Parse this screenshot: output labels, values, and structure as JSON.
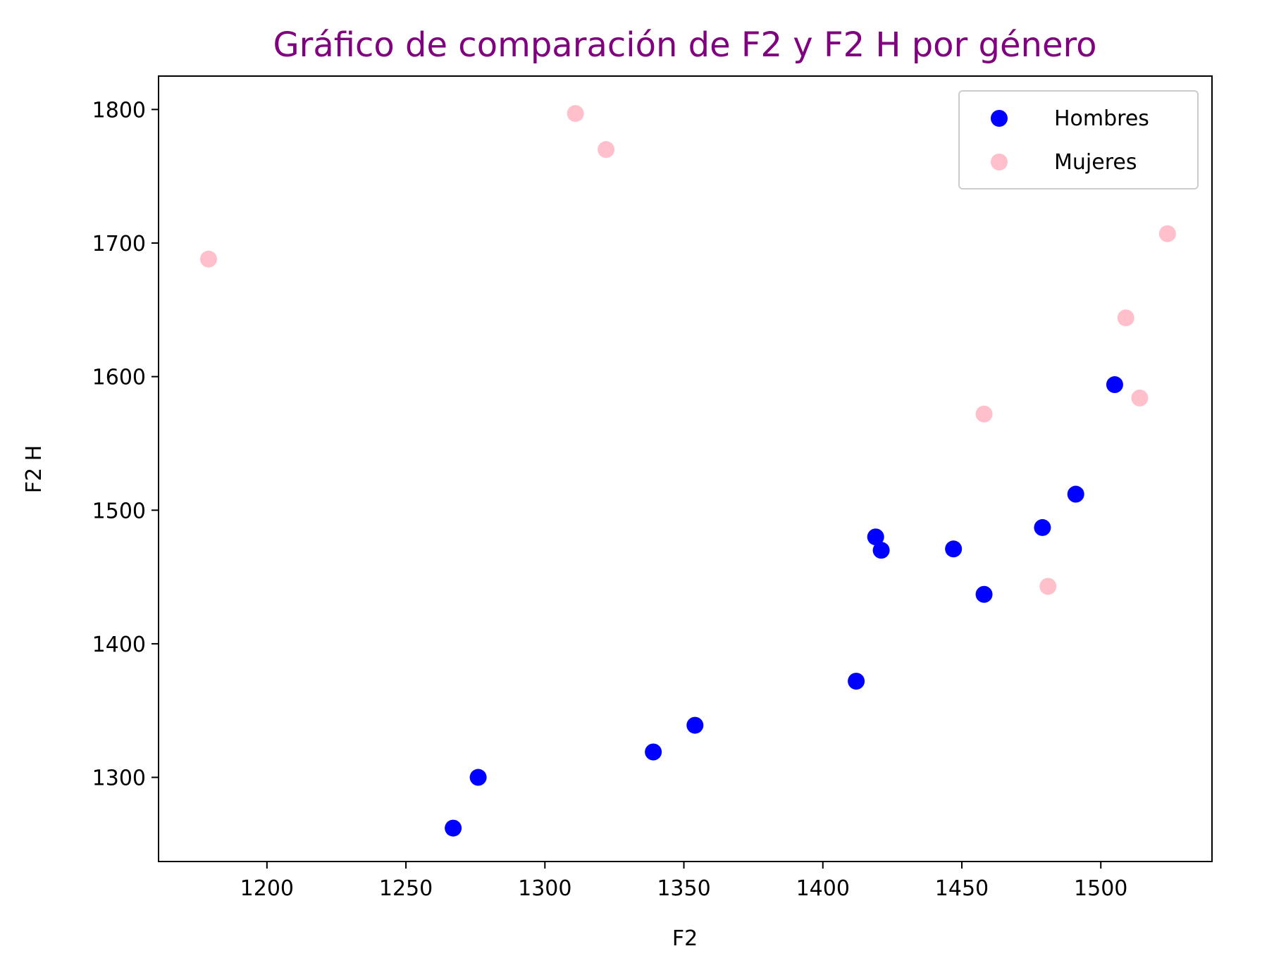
{
  "chart_data": {
    "type": "scatter",
    "title": "Gráfico de comparación de F2 y F2 H por género",
    "title_color": "#800080",
    "xlabel": "F2",
    "ylabel": "F2 H",
    "xlim": [
      1161,
      1540
    ],
    "ylim": [
      1237,
      1825
    ],
    "xticks": [
      1200,
      1250,
      1300,
      1350,
      1400,
      1450,
      1500
    ],
    "yticks": [
      1300,
      1400,
      1500,
      1600,
      1700,
      1800
    ],
    "grid": false,
    "legend_position": "top-right",
    "series": [
      {
        "name": "Hombres",
        "color": "#0000ff",
        "points": [
          [
            1267,
            1262
          ],
          [
            1276,
            1300
          ],
          [
            1339,
            1319
          ],
          [
            1354,
            1339
          ],
          [
            1412,
            1372
          ],
          [
            1419,
            1480
          ],
          [
            1421,
            1470
          ],
          [
            1447,
            1471
          ],
          [
            1458,
            1437
          ],
          [
            1479,
            1487
          ],
          [
            1491,
            1512
          ],
          [
            1505,
            1594
          ]
        ]
      },
      {
        "name": "Mujeres",
        "color": "#ffc0cb",
        "points": [
          [
            1179,
            1688
          ],
          [
            1311,
            1797
          ],
          [
            1322,
            1770
          ],
          [
            1458,
            1572
          ],
          [
            1481,
            1443
          ],
          [
            1509,
            1644
          ],
          [
            1514,
            1584
          ],
          [
            1524,
            1707
          ]
        ]
      }
    ]
  }
}
